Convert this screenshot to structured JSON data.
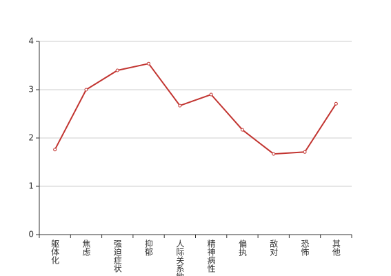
{
  "chart_data": {
    "type": "line",
    "categories": [
      "躯体化",
      "焦虑",
      "强迫症状",
      "抑郁",
      "人际关系敏感",
      "精神病性",
      "偏执",
      "敌对",
      "恐怖",
      "其他"
    ],
    "values": [
      1.76,
      3.0,
      3.4,
      3.54,
      2.67,
      2.9,
      2.17,
      1.67,
      1.71,
      2.71
    ],
    "color": "#c23531",
    "ylim": [
      0,
      4
    ],
    "yticks": [
      0,
      1,
      2,
      3,
      4
    ],
    "grid": true
  }
}
